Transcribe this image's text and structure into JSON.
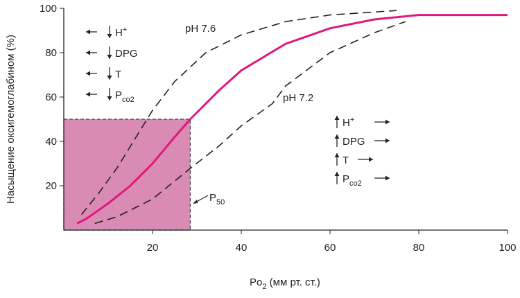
{
  "chart_data": {
    "type": "line",
    "x_label": {
      "base": "Po",
      "sub": "2",
      "rest": " (мм рт. ст.)"
    },
    "y_label": "Насыщение оксигемоглабином (%)",
    "xlim": [
      0,
      100
    ],
    "ylim": [
      0,
      100
    ],
    "xticks": [
      20,
      40,
      60,
      80,
      100
    ],
    "yticks": [
      20,
      40,
      60,
      80,
      100
    ],
    "series": [
      {
        "color": "#e0177e",
        "x": [
          3,
          5,
          10,
          15,
          20,
          25,
          28.5,
          35,
          40,
          50,
          60,
          70,
          80,
          90,
          100
        ],
        "values": [
          3,
          5,
          12,
          20,
          30,
          42,
          50,
          63,
          72,
          84,
          91,
          95,
          97,
          97,
          97
        ]
      },
      {
        "name": "pH 7.6",
        "color": "#222222",
        "x": [
          4,
          8,
          12,
          16,
          20,
          25,
          32,
          40,
          50,
          60,
          75
        ],
        "values": [
          7,
          17,
          28,
          41,
          54,
          67,
          80,
          88,
          94,
          97,
          99
        ]
      },
      {
        "name": "pH 7.2",
        "color": "#222222",
        "x": [
          7,
          12,
          20,
          28,
          35,
          40,
          47,
          50,
          60,
          70,
          77
        ],
        "values": [
          3,
          6,
          14,
          27,
          38,
          47,
          57,
          65,
          80,
          89,
          94
        ]
      }
    ],
    "p50": {
      "label": {
        "base": "P",
        "sub": "50"
      },
      "x": 28.5,
      "y": 50,
      "color": "#d98bb3"
    },
    "left_factors": [
      {
        "base": "H",
        "sup": "+"
      },
      {
        "base": "DPG"
      },
      {
        "base": "T"
      },
      {
        "base": "P",
        "sub": "co2"
      }
    ],
    "right_factors": [
      {
        "base": "H",
        "sup": "+"
      },
      {
        "base": "DPG"
      },
      {
        "base": "T"
      },
      {
        "base": "P",
        "sub": "co2"
      }
    ]
  }
}
